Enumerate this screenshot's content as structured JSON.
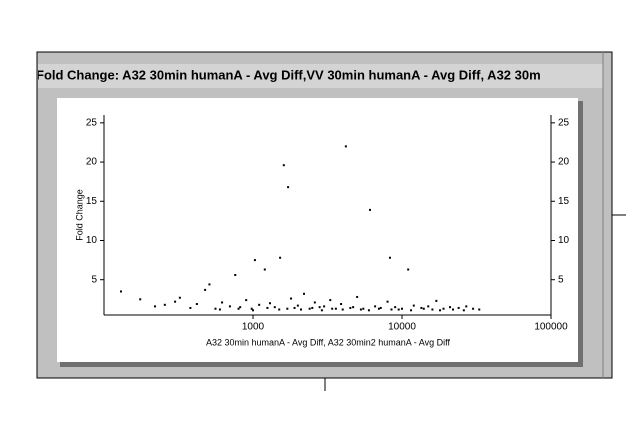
{
  "chart_data": {
    "type": "scatter",
    "title": "Fold Change: A32 30min humanA - Avg Diff,VV 30min humanA - Avg Diff, A32 30m",
    "x_label": "A32 30min humanA - Avg Diff, A32 30min2 humanA - Avg Diff",
    "y_label": "Fold Change",
    "xscale": "log",
    "xlim": [
      100,
      100000
    ],
    "xticks": [
      1000,
      10000,
      100000
    ],
    "ylim": [
      0.5,
      26
    ],
    "yticks": [
      5,
      10,
      15,
      20,
      25
    ],
    "right_axis_ticks": true,
    "color": "#000000",
    "x": [
      130,
      175,
      220,
      256,
      300,
      323,
      380,
      420,
      477,
      510,
      560,
      620,
      700,
      760,
      820,
      900,
      980,
      1030,
      1100,
      1200,
      1300,
      1400,
      1520,
      1610,
      1720,
      1800,
      1900,
      2000,
      2200,
      2400,
      2600,
      2800,
      3000,
      3300,
      3600,
      3900,
      4200,
      4500,
      5000,
      5500,
      6100,
      6600,
      7200,
      8000,
      8300,
      9000,
      10000,
      11000,
      12000,
      13500,
      15000,
      17000,
      19000,
      21000,
      24000,
      27000,
      30000,
      33000,
      600,
      800,
      1000,
      1250,
      1500,
      1700,
      2100,
      2500,
      2900,
      3400,
      4000,
      4700,
      5300,
      6000,
      7000,
      8500,
      9500,
      11500,
      14000,
      16000,
      18000,
      22000,
      26000
    ],
    "values": [
      3.5,
      2.5,
      1.6,
      1.8,
      2.2,
      2.7,
      1.4,
      1.9,
      3.7,
      4.4,
      1.3,
      2.1,
      1.6,
      5.6,
      1.5,
      2.4,
      1.3,
      7.5,
      1.8,
      6.3,
      2.0,
      1.5,
      7.8,
      19.6,
      16.8,
      2.6,
      1.4,
      1.7,
      3.2,
      1.3,
      2.1,
      1.5,
      1.6,
      2.4,
      1.3,
      1.9,
      22,
      1.4,
      2.8,
      1.3,
      13.9,
      1.6,
      1.4,
      2.2,
      7.8,
      1.5,
      1.3,
      6.3,
      1.7,
      1.4,
      1.6,
      2.3,
      1.3,
      1.5,
      1.4,
      1.6,
      1.3,
      1.2,
      1.2,
      1.3,
      1.1,
      1.4,
      1.2,
      1.3,
      1.2,
      1.4,
      1.1,
      1.3,
      1.2,
      1.5,
      1.2,
      1.1,
      1.3,
      1.2,
      1.2,
      1.1,
      1.3,
      1.2,
      1.1,
      1.2,
      1.1
    ]
  }
}
